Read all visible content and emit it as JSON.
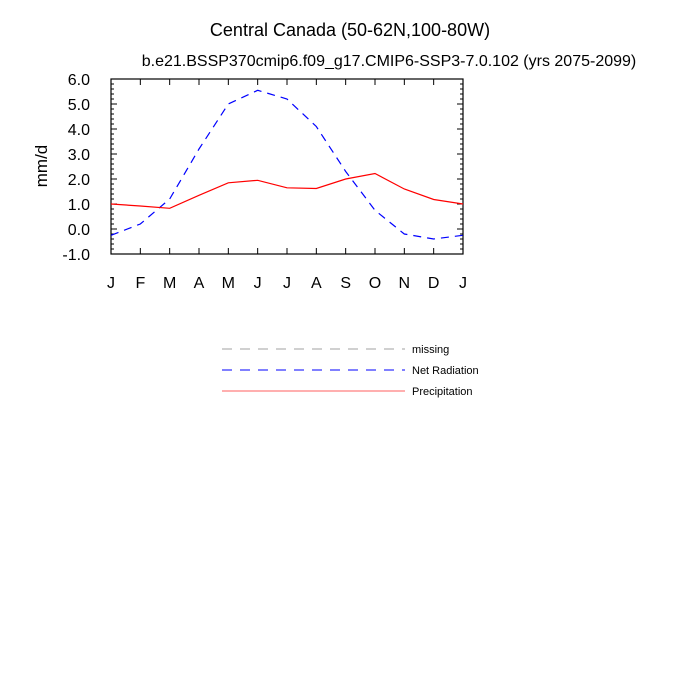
{
  "chart_data": {
    "type": "line",
    "title": "Central Canada (50-62N,100-80W)",
    "subtitle": "b.e21.BSSP370cmip6.f09_g17.CMIP6-SSP3-7.0.102 (yrs 2075-2099)",
    "xlabel": "",
    "ylabel": "mm/d",
    "categories": [
      "J",
      "F",
      "M",
      "A",
      "M",
      "J",
      "J",
      "A",
      "S",
      "O",
      "N",
      "D",
      "J"
    ],
    "ylim": [
      -1.0,
      6.0
    ],
    "yticks": [
      "-1.0",
      "0.0",
      "1.0",
      "2.0",
      "3.0",
      "4.0",
      "5.0",
      "6.0"
    ],
    "grid": false,
    "legend_position": "below",
    "legend": [
      {
        "name": "missing",
        "color": "#a0a0a0",
        "style": "dashed"
      },
      {
        "name": "Net Radiation",
        "color": "#0000ff",
        "style": "dashed"
      },
      {
        "name": "Precipitation",
        "color": "#ff0000",
        "style": "solid"
      }
    ],
    "series": [
      {
        "name": "Net Radiation",
        "color": "#0000ff",
        "style": "dashed",
        "values": [
          -0.25,
          0.2,
          1.2,
          3.2,
          5.0,
          5.55,
          5.2,
          4.1,
          2.3,
          0.75,
          -0.2,
          -0.4,
          -0.25
        ]
      },
      {
        "name": "Precipitation",
        "color": "#ff0000",
        "style": "solid",
        "values": [
          1.0,
          0.92,
          0.83,
          1.35,
          1.85,
          1.95,
          1.65,
          1.62,
          2.0,
          2.22,
          1.6,
          1.18,
          1.0
        ]
      }
    ]
  }
}
